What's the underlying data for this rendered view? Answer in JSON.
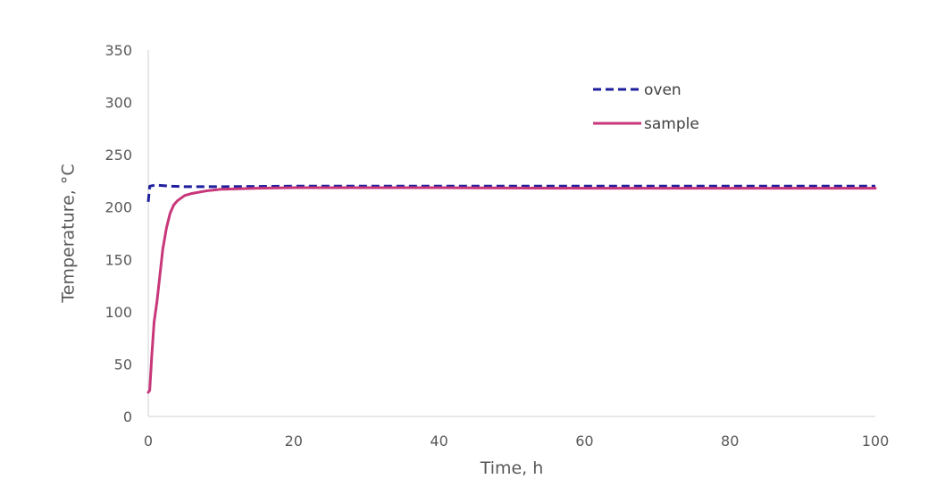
{
  "chart_data": {
    "type": "line",
    "title": "",
    "xlabel": "Time, h",
    "ylabel": "Temperature, °C",
    "xlim": [
      0,
      100
    ],
    "ylim": [
      0,
      350
    ],
    "xticks": [
      0,
      20,
      40,
      60,
      80,
      100
    ],
    "yticks": [
      0,
      50,
      100,
      150,
      200,
      250,
      300,
      350
    ],
    "grid": false,
    "legend_position": "top-right",
    "series": [
      {
        "name": "oven",
        "color": "#1f1f9e",
        "style": "dashed",
        "points": [
          [
            0,
            205
          ],
          [
            0.2,
            220
          ],
          [
            1,
            221
          ],
          [
            3,
            220
          ],
          [
            5,
            219.5
          ],
          [
            10,
            219.5
          ],
          [
            20,
            220
          ],
          [
            40,
            220
          ],
          [
            60,
            220
          ],
          [
            80,
            220
          ],
          [
            100,
            220
          ]
        ]
      },
      {
        "name": "sample",
        "color": "#c8377a",
        "style": "solid",
        "points": [
          [
            0,
            23
          ],
          [
            0.2,
            25
          ],
          [
            0.5,
            60
          ],
          [
            0.8,
            90
          ],
          [
            1.2,
            110
          ],
          [
            1.6,
            135
          ],
          [
            2,
            160
          ],
          [
            2.5,
            180
          ],
          [
            3,
            194
          ],
          [
            3.5,
            202
          ],
          [
            4,
            206
          ],
          [
            5,
            211
          ],
          [
            6,
            213
          ],
          [
            8,
            215.5
          ],
          [
            10,
            217
          ],
          [
            15,
            218
          ],
          [
            20,
            218.5
          ],
          [
            30,
            218.5
          ],
          [
            40,
            218.5
          ],
          [
            60,
            218
          ],
          [
            80,
            218
          ],
          [
            100,
            218
          ]
        ]
      }
    ]
  }
}
